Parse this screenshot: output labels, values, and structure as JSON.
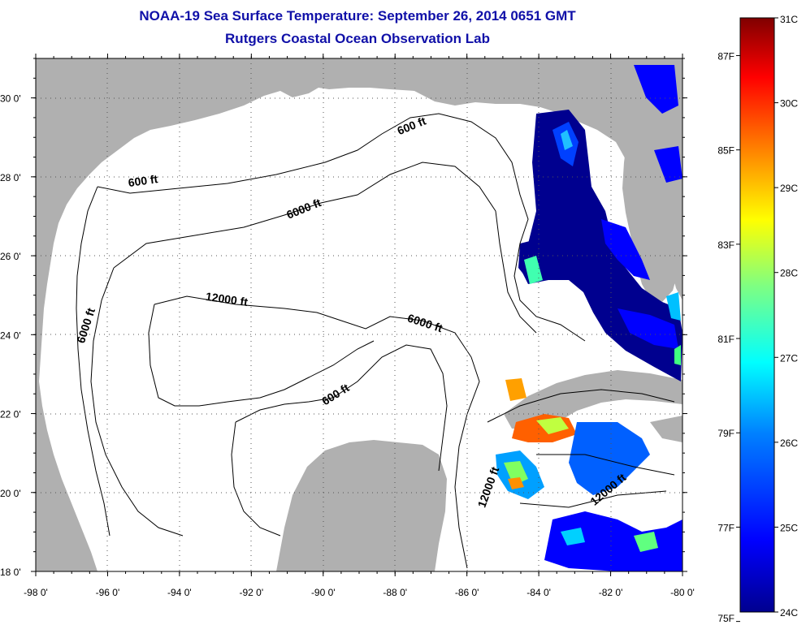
{
  "title": "NOAA-19 Sea Surface Temperature:  September 26, 2014 0651 GMT",
  "subtitle": "Rutgers Coastal Ocean Observation Lab",
  "map": {
    "lon_range": [
      -98,
      -80
    ],
    "lat_range": [
      18,
      31
    ],
    "lon_ticks": [
      "-98 0'",
      "-96 0'",
      "-94 0'",
      "-92 0'",
      "-90 0'",
      "-88 0'",
      "-86 0'",
      "-84 0'",
      "-82 0'",
      "-80 0'"
    ],
    "lat_ticks": [
      "30 0'",
      "28 0'",
      "26 0'",
      "24 0'",
      "22 0'",
      "20 0'",
      "18 0'"
    ],
    "grid": true,
    "land_color": "#b0b0b0",
    "ocean_color": "#ffffff",
    "contour_labels": [
      {
        "text": "600 ft",
        "lon": -87.5,
        "lat": 29.2,
        "angle": -22
      },
      {
        "text": "600 ft",
        "lon": -95.0,
        "lat": 27.8,
        "angle": -8
      },
      {
        "text": "6000 ft",
        "lon": -90.5,
        "lat": 27.1,
        "angle": -22
      },
      {
        "text": "6000 ft",
        "lon": -96.5,
        "lat": 24.2,
        "angle": -72
      },
      {
        "text": "12000 ft",
        "lon": -92.7,
        "lat": 24.8,
        "angle": 8
      },
      {
        "text": "6000 ft",
        "lon": -87.2,
        "lat": 24.2,
        "angle": 18
      },
      {
        "text": "600 ft",
        "lon": -89.6,
        "lat": 22.4,
        "angle": -32
      },
      {
        "text": "12000 ft",
        "lon": -85.3,
        "lat": 20.1,
        "angle": -70
      },
      {
        "text": "12000 ft",
        "lon": -82.0,
        "lat": 20.0,
        "angle": -40
      }
    ]
  },
  "colorbar": {
    "min_c": 24,
    "max_c": 31,
    "celsius_labels": [
      "31C",
      "30C",
      "29C",
      "28C",
      "27C",
      "26C",
      "25C",
      "24C"
    ],
    "fahrenheit_labels": [
      "87F",
      "85F",
      "83F",
      "81F",
      "79F",
      "77F",
      "75F"
    ],
    "fahrenheit_values": [
      87,
      85,
      83,
      81,
      79,
      77,
      75
    ],
    "colors": [
      "#00008f",
      "#0000ff",
      "#0080ff",
      "#00ffff",
      "#80ff80",
      "#ffff00",
      "#ff8000",
      "#ff0000",
      "#800000"
    ]
  }
}
